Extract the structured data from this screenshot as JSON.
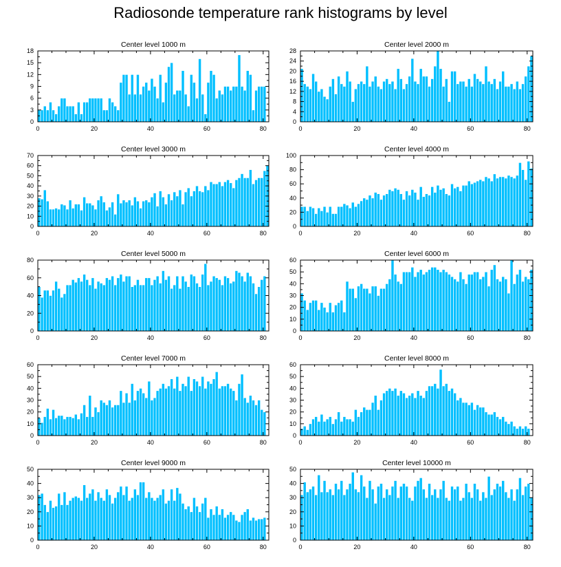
{
  "title": "Radiosonde temperature rank histograms by level",
  "chart_data": [
    {
      "type": "bar",
      "title": "Center level 1000 m",
      "xlabel": "",
      "ylabel": "",
      "xlim": [
        0,
        82
      ],
      "xticks": [
        0,
        20,
        40,
        60,
        80
      ],
      "ylim": [
        0,
        18
      ],
      "yticks": [
        0,
        3,
        6,
        9,
        12,
        15,
        18
      ],
      "values": [
        3,
        3,
        4,
        3,
        5,
        3,
        2,
        4,
        6,
        6,
        4,
        4,
        4,
        2,
        5,
        2,
        5,
        5,
        6,
        6,
        6,
        6,
        6,
        3,
        3,
        6,
        5,
        4,
        3,
        10,
        12,
        12,
        7,
        12,
        7,
        12,
        7,
        9,
        10,
        8,
        11,
        9,
        6,
        12,
        5,
        10,
        14,
        15,
        7,
        8,
        8,
        13,
        7,
        4,
        12,
        10,
        6,
        16,
        7,
        2,
        10,
        13,
        12,
        6,
        8,
        7,
        9,
        9,
        8,
        9,
        9,
        17,
        9,
        8,
        13,
        12,
        3,
        8,
        9,
        9,
        9
      ],
      "yvalues_note": ""
    },
    {
      "type": "bar",
      "title": "Center level 2000 m",
      "xlabel": "",
      "ylabel": "",
      "xlim": [
        0,
        82
      ],
      "xticks": [
        0,
        20,
        40,
        60,
        80
      ],
      "ylim": [
        0,
        28
      ],
      "yticks": [
        0,
        4,
        8,
        12,
        16,
        20,
        24,
        28
      ],
      "values": [
        21,
        15,
        14,
        13,
        19,
        16,
        12,
        13,
        10,
        9,
        14,
        17,
        11,
        18,
        15,
        14,
        20,
        16,
        8,
        13,
        15,
        16,
        15,
        22,
        14,
        16,
        18,
        14,
        13,
        16,
        17,
        15,
        16,
        13,
        21,
        17,
        13,
        15,
        18,
        25,
        16,
        15,
        21,
        18,
        18,
        14,
        17,
        22,
        28,
        21,
        14,
        17,
        8,
        20,
        20,
        15,
        16,
        16,
        14,
        17,
        14,
        19,
        17,
        16,
        15,
        22,
        16,
        15,
        17,
        13,
        16,
        20,
        14,
        14,
        15,
        13,
        16,
        13,
        15,
        18,
        22,
        26
      ],
      "yvalues_note": ""
    },
    {
      "type": "bar",
      "title": "Center level 3000 m",
      "xlabel": "",
      "ylabel": "",
      "xlim": [
        0,
        82
      ],
      "xticks": [
        0,
        20,
        40,
        60,
        80
      ],
      "ylim": [
        0,
        70
      ],
      "yticks": [
        0,
        10,
        20,
        30,
        40,
        50,
        60,
        70
      ],
      "values": [
        28,
        27,
        36,
        25,
        17,
        17,
        18,
        17,
        22,
        21,
        17,
        26,
        18,
        22,
        22,
        16,
        29,
        23,
        23,
        21,
        17,
        26,
        30,
        24,
        16,
        19,
        24,
        12,
        32,
        23,
        26,
        24,
        26,
        21,
        29,
        25,
        18,
        25,
        26,
        24,
        29,
        33,
        20,
        35,
        29,
        22,
        32,
        26,
        34,
        30,
        36,
        22,
        34,
        38,
        30,
        35,
        40,
        35,
        34,
        40,
        36,
        44,
        42,
        42,
        44,
        40,
        44,
        46,
        43,
        38,
        46,
        48,
        52,
        48,
        48,
        56,
        42,
        46,
        48,
        48,
        55,
        60
      ],
      "yvalues_note": ""
    },
    {
      "type": "bar",
      "title": "Center level 4000 m",
      "xlabel": "",
      "ylabel": "",
      "xlim": [
        0,
        82
      ],
      "xticks": [
        0,
        20,
        40,
        60,
        80
      ],
      "ylim": [
        0,
        100
      ],
      "yticks": [
        0,
        20,
        40,
        60,
        80,
        100
      ],
      "values": [
        28,
        28,
        22,
        28,
        26,
        18,
        26,
        22,
        28,
        20,
        28,
        18,
        18,
        28,
        28,
        32,
        30,
        26,
        34,
        28,
        32,
        36,
        40,
        38,
        44,
        40,
        48,
        46,
        38,
        44,
        46,
        52,
        50,
        54,
        52,
        46,
        38,
        50,
        44,
        52,
        48,
        38,
        56,
        42,
        46,
        44,
        56,
        48,
        58,
        52,
        54,
        46,
        44,
        60,
        54,
        56,
        50,
        58,
        58,
        64,
        60,
        62,
        64,
        66,
        64,
        70,
        68,
        64,
        74,
        68,
        70,
        70,
        68,
        72,
        70,
        68,
        72,
        90,
        80,
        66,
        92,
        82
      ],
      "yvalues_note": ""
    },
    {
      "type": "bar",
      "title": "Center level 5000 m",
      "xlabel": "",
      "ylabel": "",
      "xlim": [
        0,
        82
      ],
      "xticks": [
        0,
        20,
        40,
        60,
        80
      ],
      "ylim": [
        0,
        80
      ],
      "yticks": [
        0,
        20,
        40,
        60,
        80
      ],
      "values": [
        50,
        38,
        46,
        46,
        40,
        46,
        56,
        48,
        38,
        42,
        52,
        52,
        58,
        55,
        60,
        56,
        64,
        58,
        52,
        60,
        48,
        56,
        54,
        52,
        60,
        58,
        62,
        52,
        60,
        64,
        56,
        62,
        62,
        50,
        52,
        58,
        52,
        52,
        60,
        60,
        52,
        58,
        62,
        54,
        68,
        58,
        62,
        48,
        52,
        62,
        48,
        62,
        56,
        50,
        64,
        62,
        54,
        50,
        64,
        76,
        52,
        56,
        62,
        60,
        58,
        52,
        62,
        60,
        54,
        56,
        68,
        66,
        62,
        56,
        66,
        62,
        54,
        42,
        50,
        58,
        62
      ],
      "yvalues_note": ""
    },
    {
      "type": "bar",
      "title": "Center level 6000 m",
      "xlabel": "",
      "ylabel": "",
      "xlim": [
        0,
        82
      ],
      "xticks": [
        0,
        20,
        40,
        60,
        80
      ],
      "ylim": [
        0,
        60
      ],
      "yticks": [
        0,
        10,
        20,
        30,
        40,
        50,
        60
      ],
      "values": [
        32,
        26,
        18,
        24,
        26,
        26,
        18,
        24,
        20,
        16,
        24,
        16,
        22,
        24,
        26,
        16,
        42,
        36,
        36,
        28,
        38,
        40,
        36,
        36,
        32,
        38,
        38,
        30,
        36,
        36,
        40,
        44,
        60,
        48,
        42,
        40,
        50,
        50,
        50,
        54,
        46,
        50,
        52,
        48,
        50,
        52,
        54,
        54,
        52,
        50,
        52,
        50,
        48,
        46,
        44,
        42,
        50,
        44,
        40,
        48,
        48,
        50,
        50,
        44,
        46,
        50,
        38,
        52,
        56,
        44,
        42,
        46,
        44,
        32,
        60,
        40,
        48,
        52,
        42,
        46,
        44,
        52
      ],
      "yvalues_note": ""
    },
    {
      "type": "bar",
      "title": "Center level 7000 m",
      "xlabel": "",
      "ylabel": "",
      "xlim": [
        0,
        82
      ],
      "xticks": [
        0,
        20,
        40,
        60,
        80
      ],
      "ylim": [
        0,
        60
      ],
      "yticks": [
        0,
        10,
        20,
        30,
        40,
        50,
        60
      ],
      "values": [
        15,
        11,
        16,
        23,
        14,
        22,
        15,
        17,
        17,
        14,
        16,
        16,
        15,
        18,
        14,
        19,
        26,
        16,
        34,
        16,
        24,
        20,
        30,
        28,
        26,
        30,
        24,
        26,
        26,
        38,
        28,
        36,
        28,
        44,
        30,
        38,
        40,
        36,
        32,
        46,
        30,
        32,
        38,
        40,
        44,
        40,
        42,
        48,
        40,
        50,
        38,
        44,
        42,
        50,
        38,
        48,
        46,
        42,
        50,
        40,
        46,
        44,
        48,
        54,
        40,
        42,
        42,
        44,
        40,
        38,
        30,
        44,
        52,
        32,
        28,
        34,
        30,
        26,
        30,
        22,
        20
      ],
      "yvalues_note": ""
    },
    {
      "type": "bar",
      "title": "Center level 8000 m",
      "xlabel": "",
      "ylabel": "",
      "xlim": [
        0,
        82
      ],
      "xticks": [
        0,
        20,
        40,
        60,
        80
      ],
      "ylim": [
        0,
        60
      ],
      "yticks": [
        0,
        10,
        20,
        30,
        40,
        50,
        60
      ],
      "values": [
        6,
        8,
        5,
        10,
        14,
        16,
        12,
        18,
        12,
        14,
        16,
        10,
        14,
        20,
        12,
        16,
        14,
        14,
        12,
        22,
        16,
        20,
        24,
        22,
        22,
        28,
        34,
        22,
        30,
        36,
        38,
        40,
        38,
        40,
        34,
        38,
        36,
        32,
        34,
        36,
        32,
        38,
        34,
        32,
        38,
        42,
        42,
        44,
        40,
        56,
        42,
        44,
        38,
        40,
        36,
        30,
        32,
        28,
        28,
        26,
        28,
        22,
        26,
        24,
        24,
        20,
        18,
        18,
        20,
        16,
        14,
        16,
        12,
        10,
        12,
        8,
        6,
        8,
        6,
        8,
        6
      ],
      "yvalues_note": ""
    },
    {
      "type": "bar",
      "title": "Center level 9000 m",
      "xlabel": "",
      "ylabel": "",
      "xlim": [
        0,
        82
      ],
      "xticks": [
        0,
        20,
        40,
        60,
        80
      ],
      "ylim": [
        0,
        50
      ],
      "yticks": [
        0,
        10,
        20,
        30,
        40,
        50
      ],
      "values": [
        32,
        33,
        25,
        20,
        28,
        23,
        24,
        33,
        25,
        34,
        25,
        28,
        30,
        31,
        30,
        28,
        39,
        30,
        33,
        36,
        28,
        34,
        30,
        28,
        36,
        32,
        26,
        30,
        34,
        38,
        32,
        38,
        28,
        30,
        36,
        32,
        41,
        41,
        30,
        34,
        30,
        28,
        30,
        32,
        36,
        26,
        28,
        36,
        28,
        37,
        33,
        26,
        22,
        24,
        20,
        30,
        24,
        20,
        26,
        30,
        16,
        22,
        18,
        24,
        18,
        22,
        16,
        18,
        20,
        18,
        14,
        13,
        18,
        20,
        22,
        14,
        16,
        14,
        15,
        15,
        16
      ],
      "yvalues_note": ""
    },
    {
      "type": "bar",
      "title": "Center level 10000 m",
      "xlabel": "",
      "ylabel": "",
      "xlim": [
        0,
        82
      ],
      "xticks": [
        0,
        20,
        40,
        60,
        80
      ],
      "ylim": [
        0,
        50
      ],
      "yticks": [
        0,
        10,
        20,
        30,
        40,
        50
      ],
      "values": [
        32,
        41,
        34,
        36,
        38,
        32,
        46,
        34,
        42,
        34,
        36,
        32,
        40,
        36,
        42,
        32,
        36,
        40,
        48,
        36,
        34,
        46,
        38,
        30,
        42,
        36,
        26,
        38,
        40,
        30,
        36,
        32,
        38,
        42,
        30,
        38,
        40,
        38,
        30,
        28,
        38,
        42,
        44,
        36,
        30,
        40,
        32,
        36,
        30,
        36,
        42,
        30,
        28,
        38,
        36,
        38,
        28,
        30,
        40,
        34,
        30,
        40,
        36,
        28,
        34,
        30,
        45,
        32,
        36,
        40,
        38,
        42,
        34,
        30,
        36,
        28,
        36,
        44,
        32,
        38,
        40,
        30
      ],
      "yvalues_note": ""
    }
  ]
}
